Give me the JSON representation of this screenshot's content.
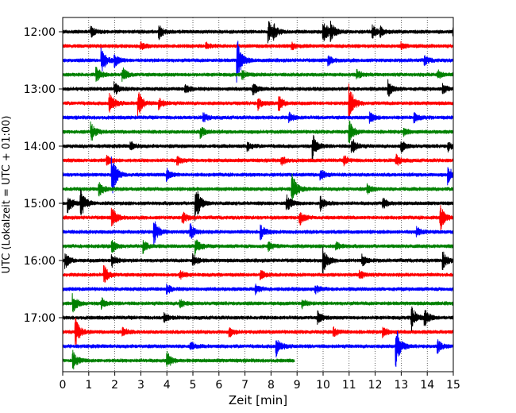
{
  "chart_data": {
    "type": "line",
    "title": "",
    "xlabel": "Zeit  [min]",
    "ylabel": "UTC (Lokalzeit = UTC + 01:00)",
    "xlim": [
      0,
      15
    ],
    "x_ticks": [
      "0",
      "1",
      "2",
      "3",
      "4",
      "5",
      "6",
      "7",
      "8",
      "9",
      "10",
      "11",
      "12",
      "13",
      "14",
      "15"
    ],
    "y_ticks": [
      "12:00",
      "13:00",
      "14:00",
      "15:00",
      "16:00",
      "17:00"
    ],
    "grid": "vertical dotted",
    "trace_interval_min": 15,
    "colors": [
      "#000000",
      "#ff0000",
      "#0000ff",
      "#008000"
    ],
    "traces": [
      {
        "start": "12:00",
        "color": "#000000",
        "duration_min": 15,
        "events": [
          [
            1.1,
            0.3
          ],
          [
            3.7,
            0.5
          ],
          [
            7.9,
            0.7
          ],
          [
            8.1,
            0.4
          ],
          [
            10.0,
            1.0
          ],
          [
            10.3,
            0.5
          ],
          [
            11.9,
            0.4
          ],
          [
            12.2,
            0.3
          ],
          [
            15.0,
            0.5
          ]
        ]
      },
      {
        "start": "12:15",
        "color": "#ff0000",
        "duration_min": 15,
        "events": [
          [
            3.0,
            0.25
          ],
          [
            5.5,
            0.2
          ],
          [
            8.8,
            0.2
          ],
          [
            13.0,
            0.2
          ]
        ]
      },
      {
        "start": "12:30",
        "color": "#0000ff",
        "duration_min": 15,
        "events": [
          [
            1.5,
            0.8
          ],
          [
            2.0,
            0.4
          ],
          [
            6.7,
            1.6
          ],
          [
            10.2,
            0.3
          ],
          [
            13.9,
            0.3
          ]
        ]
      },
      {
        "start": "12:45",
        "color": "#008000",
        "duration_min": 15,
        "events": [
          [
            1.3,
            0.5
          ],
          [
            2.3,
            0.5
          ],
          [
            6.9,
            0.3
          ],
          [
            11.3,
            0.3
          ],
          [
            14.4,
            0.3
          ]
        ]
      },
      {
        "start": "13:00",
        "color": "#000000",
        "duration_min": 15,
        "events": [
          [
            2.0,
            0.4
          ],
          [
            4.7,
            0.3
          ],
          [
            7.3,
            0.4
          ],
          [
            12.5,
            0.6
          ],
          [
            14.6,
            0.3
          ]
        ]
      },
      {
        "start": "13:15",
        "color": "#ff0000",
        "duration_min": 15,
        "events": [
          [
            1.8,
            0.8
          ],
          [
            2.9,
            0.9
          ],
          [
            3.7,
            0.4
          ],
          [
            7.5,
            0.4
          ],
          [
            8.3,
            0.5
          ],
          [
            11.0,
            1.5
          ]
        ]
      },
      {
        "start": "13:30",
        "color": "#0000ff",
        "duration_min": 15,
        "events": [
          [
            5.4,
            0.3
          ],
          [
            8.7,
            0.3
          ],
          [
            11.8,
            0.4
          ],
          [
            13.5,
            0.3
          ]
        ]
      },
      {
        "start": "13:45",
        "color": "#008000",
        "duration_min": 15,
        "events": [
          [
            1.1,
            0.6
          ],
          [
            5.3,
            0.4
          ],
          [
            11.0,
            0.8
          ],
          [
            13.1,
            0.3
          ]
        ]
      },
      {
        "start": "14:00",
        "color": "#000000",
        "duration_min": 15,
        "events": [
          [
            2.6,
            0.3
          ],
          [
            7.1,
            0.3
          ],
          [
            9.6,
            0.8
          ],
          [
            11.1,
            0.6
          ],
          [
            13.0,
            0.4
          ],
          [
            14.8,
            0.3
          ]
        ]
      },
      {
        "start": "14:15",
        "color": "#ff0000",
        "duration_min": 15,
        "events": [
          [
            1.7,
            0.3
          ],
          [
            4.4,
            0.3
          ],
          [
            8.4,
            0.3
          ],
          [
            10.8,
            0.3
          ],
          [
            12.8,
            0.4
          ]
        ]
      },
      {
        "start": "14:30",
        "color": "#0000ff",
        "duration_min": 15,
        "events": [
          [
            1.9,
            1.5
          ],
          [
            4.0,
            0.4
          ],
          [
            9.9,
            0.4
          ],
          [
            14.8,
            0.6
          ]
        ]
      },
      {
        "start": "14:45",
        "color": "#008000",
        "duration_min": 15,
        "events": [
          [
            1.4,
            0.5
          ],
          [
            8.8,
            1.2
          ],
          [
            11.7,
            0.3
          ]
        ]
      },
      {
        "start": "15:00",
        "color": "#000000",
        "duration_min": 15,
        "events": [
          [
            0.2,
            0.6
          ],
          [
            0.7,
            1.0
          ],
          [
            5.1,
            1.4
          ],
          [
            8.6,
            0.6
          ],
          [
            9.9,
            0.5
          ],
          [
            12.3,
            0.4
          ]
        ]
      },
      {
        "start": "15:15",
        "color": "#ff0000",
        "duration_min": 15,
        "events": [
          [
            1.9,
            0.7
          ],
          [
            4.6,
            0.4
          ],
          [
            9.1,
            0.5
          ],
          [
            14.5,
            0.9
          ]
        ]
      },
      {
        "start": "15:30",
        "color": "#0000ff",
        "duration_min": 15,
        "events": [
          [
            3.5,
            0.9
          ],
          [
            4.9,
            0.6
          ],
          [
            7.6,
            0.5
          ],
          [
            13.6,
            0.3
          ]
        ]
      },
      {
        "start": "15:45",
        "color": "#008000",
        "duration_min": 15,
        "events": [
          [
            1.9,
            0.4
          ],
          [
            3.1,
            0.4
          ],
          [
            5.1,
            0.7
          ],
          [
            7.9,
            0.3
          ],
          [
            10.5,
            0.3
          ]
        ]
      },
      {
        "start": "16:00",
        "color": "#000000",
        "duration_min": 15,
        "events": [
          [
            0.1,
            0.5
          ],
          [
            1.9,
            0.4
          ],
          [
            5.0,
            0.4
          ],
          [
            10.0,
            0.9
          ],
          [
            11.5,
            0.4
          ],
          [
            14.6,
            0.6
          ]
        ]
      },
      {
        "start": "16:15",
        "color": "#ff0000",
        "duration_min": 15,
        "events": [
          [
            1.6,
            0.6
          ],
          [
            4.5,
            0.3
          ],
          [
            7.6,
            0.3
          ],
          [
            11.4,
            0.3
          ]
        ]
      },
      {
        "start": "16:30",
        "color": "#0000ff",
        "duration_min": 15,
        "events": [
          [
            4.0,
            0.3
          ],
          [
            7.4,
            0.3
          ],
          [
            9.7,
            0.3
          ]
        ]
      },
      {
        "start": "16:45",
        "color": "#008000",
        "duration_min": 15,
        "events": [
          [
            0.4,
            0.6
          ],
          [
            1.5,
            0.3
          ],
          [
            4.5,
            0.3
          ],
          [
            9.2,
            0.3
          ]
        ]
      },
      {
        "start": "17:00",
        "color": "#000000",
        "duration_min": 15,
        "events": [
          [
            3.9,
            0.3
          ],
          [
            9.8,
            0.4
          ],
          [
            13.4,
            0.9
          ],
          [
            13.9,
            0.6
          ]
        ]
      },
      {
        "start": "17:15",
        "color": "#ff0000",
        "duration_min": 15,
        "events": [
          [
            0.5,
            0.9
          ],
          [
            2.3,
            0.3
          ],
          [
            6.4,
            0.3
          ],
          [
            10.4,
            0.3
          ],
          [
            12.3,
            0.4
          ]
        ]
      },
      {
        "start": "17:30",
        "color": "#0000ff",
        "duration_min": 15,
        "events": [
          [
            4.9,
            0.3
          ],
          [
            8.2,
            0.7
          ],
          [
            12.8,
            1.4
          ],
          [
            14.4,
            0.4
          ]
        ]
      },
      {
        "start": "17:45",
        "color": "#008000",
        "duration_min": 8.9,
        "events": [
          [
            0.4,
            0.6
          ],
          [
            4.0,
            0.6
          ]
        ]
      }
    ]
  }
}
